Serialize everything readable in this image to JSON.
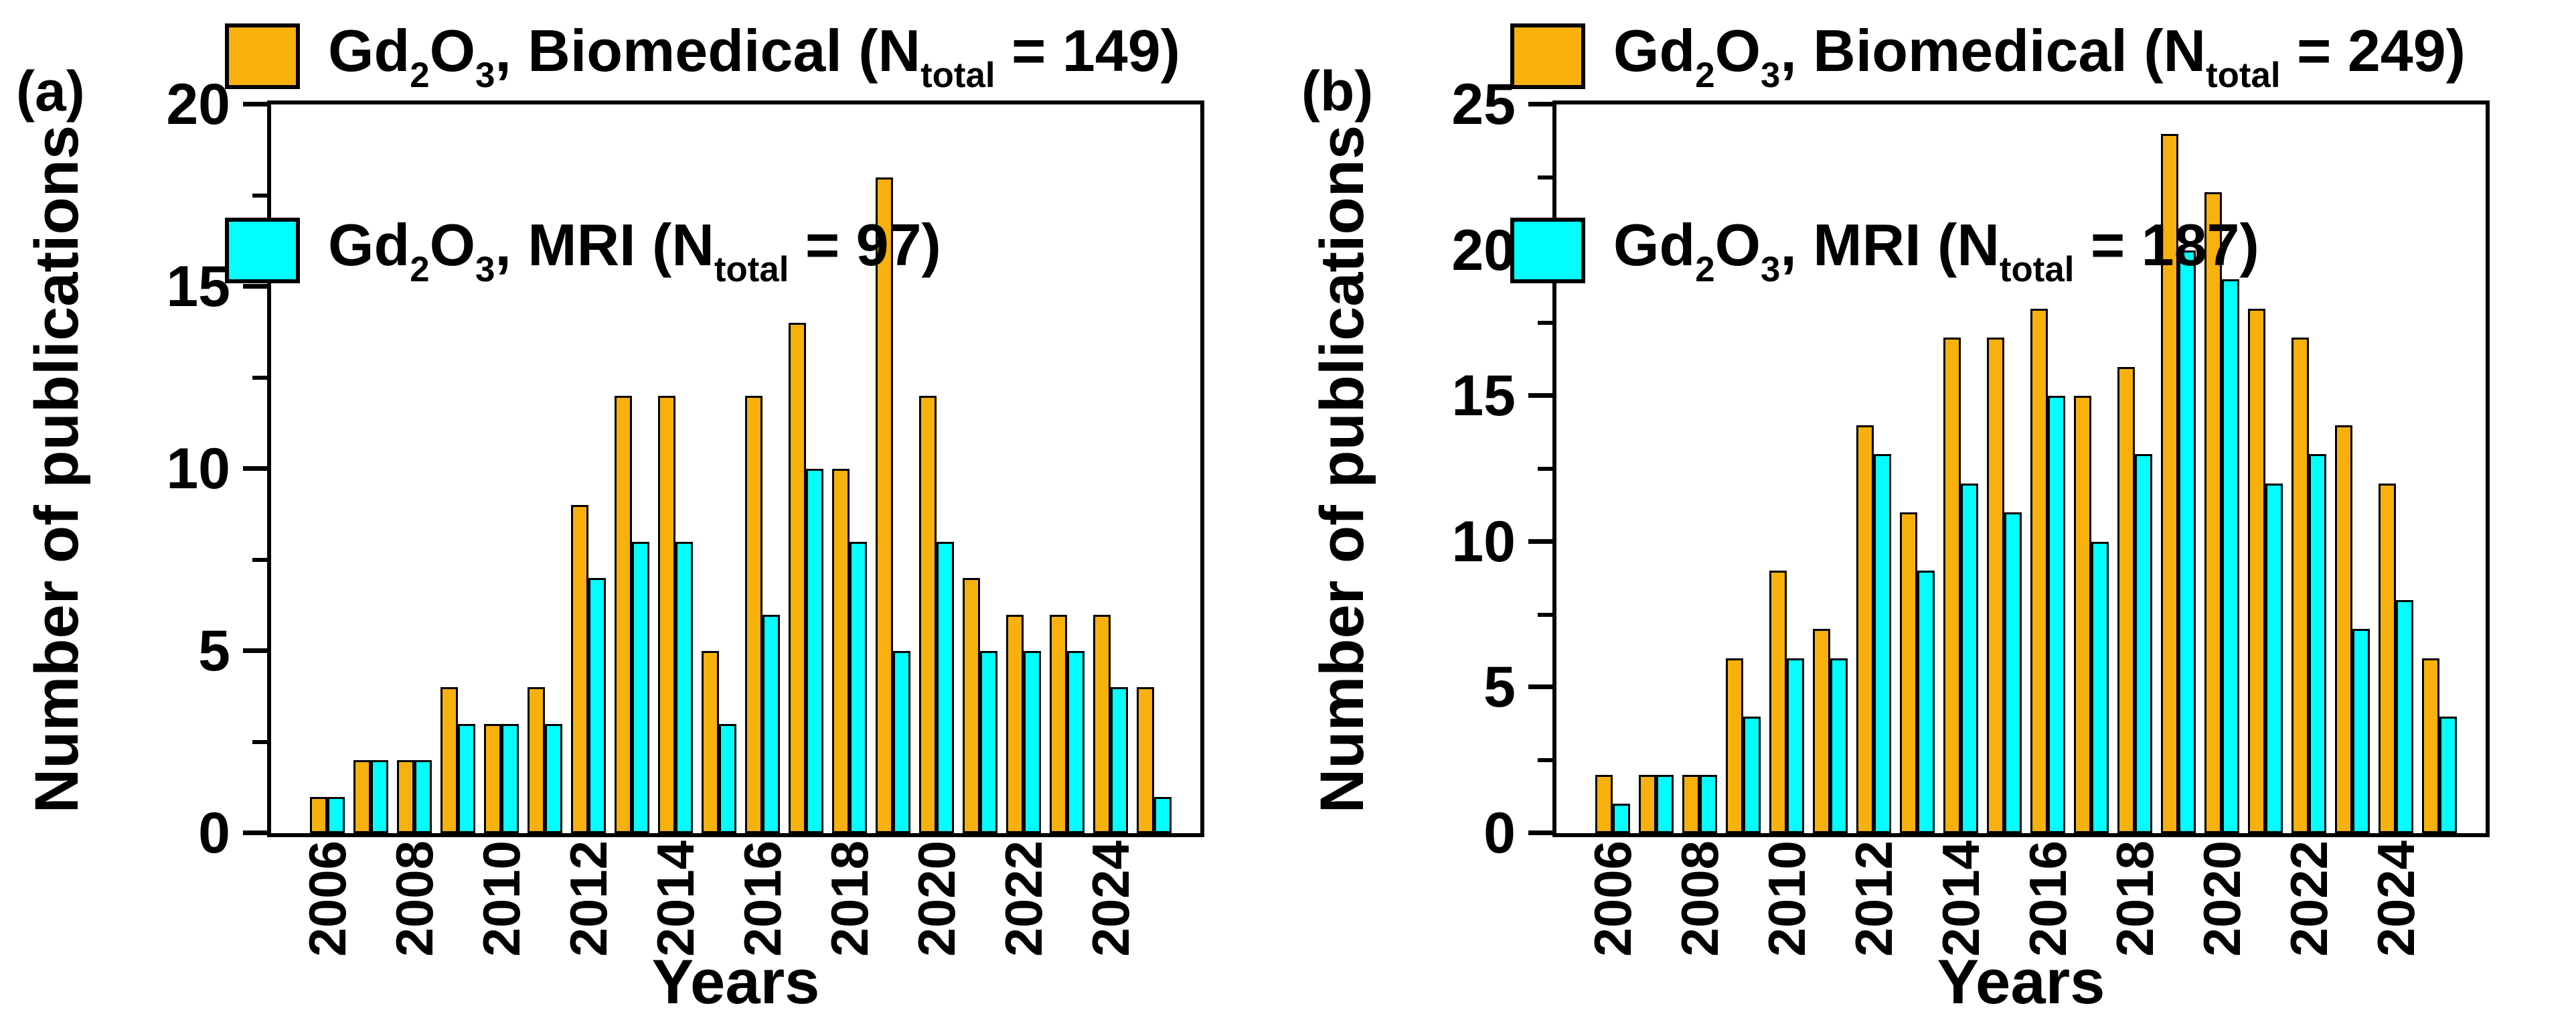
{
  "figure": {
    "background": "#FFFFFF",
    "text_color": "#000000",
    "axis_color": "#000000",
    "bar_outline_color": "#000000",
    "biomedical_color": "#F8B00C",
    "mri_color": "#00FFFF"
  },
  "chart_data": [
    {
      "type": "bar",
      "panel_label": "(a)",
      "xlabel": "Years",
      "ylabel": "Number of publications",
      "categories": [
        2006,
        2007,
        2008,
        2009,
        2010,
        2011,
        2012,
        2013,
        2014,
        2015,
        2016,
        2017,
        2018,
        2019,
        2020,
        2021,
        2022,
        2023,
        2024,
        2025
      ],
      "series": [
        {
          "name": "Gd2O3, Biomedical (Ntotal = 149)",
          "color": "#F8B00C",
          "values": [
            1,
            2,
            2,
            4,
            3,
            4,
            9,
            12,
            12,
            5,
            12,
            14,
            10,
            18,
            12,
            7,
            6,
            6,
            6,
            4
          ],
          "legend_parts": [
            {
              "t": "Gd"
            },
            {
              "t": "2",
              "sub": true
            },
            {
              "t": "O"
            },
            {
              "t": "3",
              "sub": true
            },
            {
              "t": ", Biomedical (N"
            },
            {
              "t": "total",
              "sub": true
            },
            {
              "t": " = 149)"
            }
          ]
        },
        {
          "name": "Gd2O3, MRI (Ntotal = 97)",
          "color": "#00FFFF",
          "values": [
            1,
            2,
            2,
            3,
            3,
            3,
            7,
            8,
            8,
            3,
            6,
            10,
            8,
            5,
            8,
            5,
            5,
            5,
            4,
            1
          ],
          "legend_parts": [
            {
              "t": "Gd"
            },
            {
              "t": "2",
              "sub": true
            },
            {
              "t": "O"
            },
            {
              "t": "3",
              "sub": true
            },
            {
              "t": ", MRI (N"
            },
            {
              "t": "total",
              "sub": true
            },
            {
              "t": " = 97)"
            }
          ]
        }
      ],
      "ylim": [
        0,
        20
      ],
      "yticks": [
        0,
        5,
        10,
        15,
        20
      ],
      "ytick_labels": [
        "0",
        "5",
        "10",
        "15",
        "20"
      ],
      "yticks_minor": [
        2.5,
        7.5,
        12.5,
        17.5
      ],
      "x_tick_labels": [
        "2006",
        "2008",
        "2010",
        "2012",
        "2014",
        "2016",
        "2018",
        "2020",
        "2022",
        "2024"
      ],
      "grid": false,
      "legend_position": "top-left"
    },
    {
      "type": "bar",
      "panel_label": "(b)",
      "xlabel": "Years",
      "ylabel": "Number of publications",
      "categories": [
        2006,
        2007,
        2008,
        2009,
        2010,
        2011,
        2012,
        2013,
        2014,
        2015,
        2016,
        2017,
        2018,
        2019,
        2020,
        2021,
        2022,
        2023,
        2024,
        2025
      ],
      "series": [
        {
          "name": "Gd2O3, Biomedical (Ntotal = 249)",
          "color": "#F8B00C",
          "values": [
            2,
            2,
            2,
            6,
            9,
            7,
            14,
            11,
            17,
            17,
            18,
            15,
            16,
            24,
            22,
            18,
            17,
            14,
            12,
            6
          ],
          "legend_parts": [
            {
              "t": "Gd"
            },
            {
              "t": "2",
              "sub": true
            },
            {
              "t": "O"
            },
            {
              "t": "3",
              "sub": true
            },
            {
              "t": ", Biomedical (N"
            },
            {
              "t": "total",
              "sub": true
            },
            {
              "t": " = 249)"
            }
          ]
        },
        {
          "name": "Gd2O3, MRI (Ntotal = 187)",
          "color": "#00FFFF",
          "values": [
            1,
            2,
            2,
            4,
            6,
            6,
            13,
            9,
            12,
            11,
            15,
            10,
            13,
            20,
            19,
            12,
            13,
            7,
            8,
            4
          ],
          "legend_parts": [
            {
              "t": "Gd"
            },
            {
              "t": "2",
              "sub": true
            },
            {
              "t": "O"
            },
            {
              "t": "3",
              "sub": true
            },
            {
              "t": ", MRI (N"
            },
            {
              "t": "total",
              "sub": true
            },
            {
              "t": " = 187)"
            }
          ]
        }
      ],
      "ylim": [
        0,
        25
      ],
      "yticks": [
        0,
        5,
        10,
        15,
        20,
        25
      ],
      "ytick_labels": [
        "0",
        "5",
        "10",
        "15",
        "20",
        "25"
      ],
      "yticks_minor": [
        2.5,
        7.5,
        12.5,
        17.5,
        22.5
      ],
      "x_tick_labels": [
        "2006",
        "2008",
        "2010",
        "2012",
        "2014",
        "2016",
        "2018",
        "2020",
        "2022",
        "2024"
      ],
      "grid": false,
      "legend_position": "top-left"
    }
  ]
}
